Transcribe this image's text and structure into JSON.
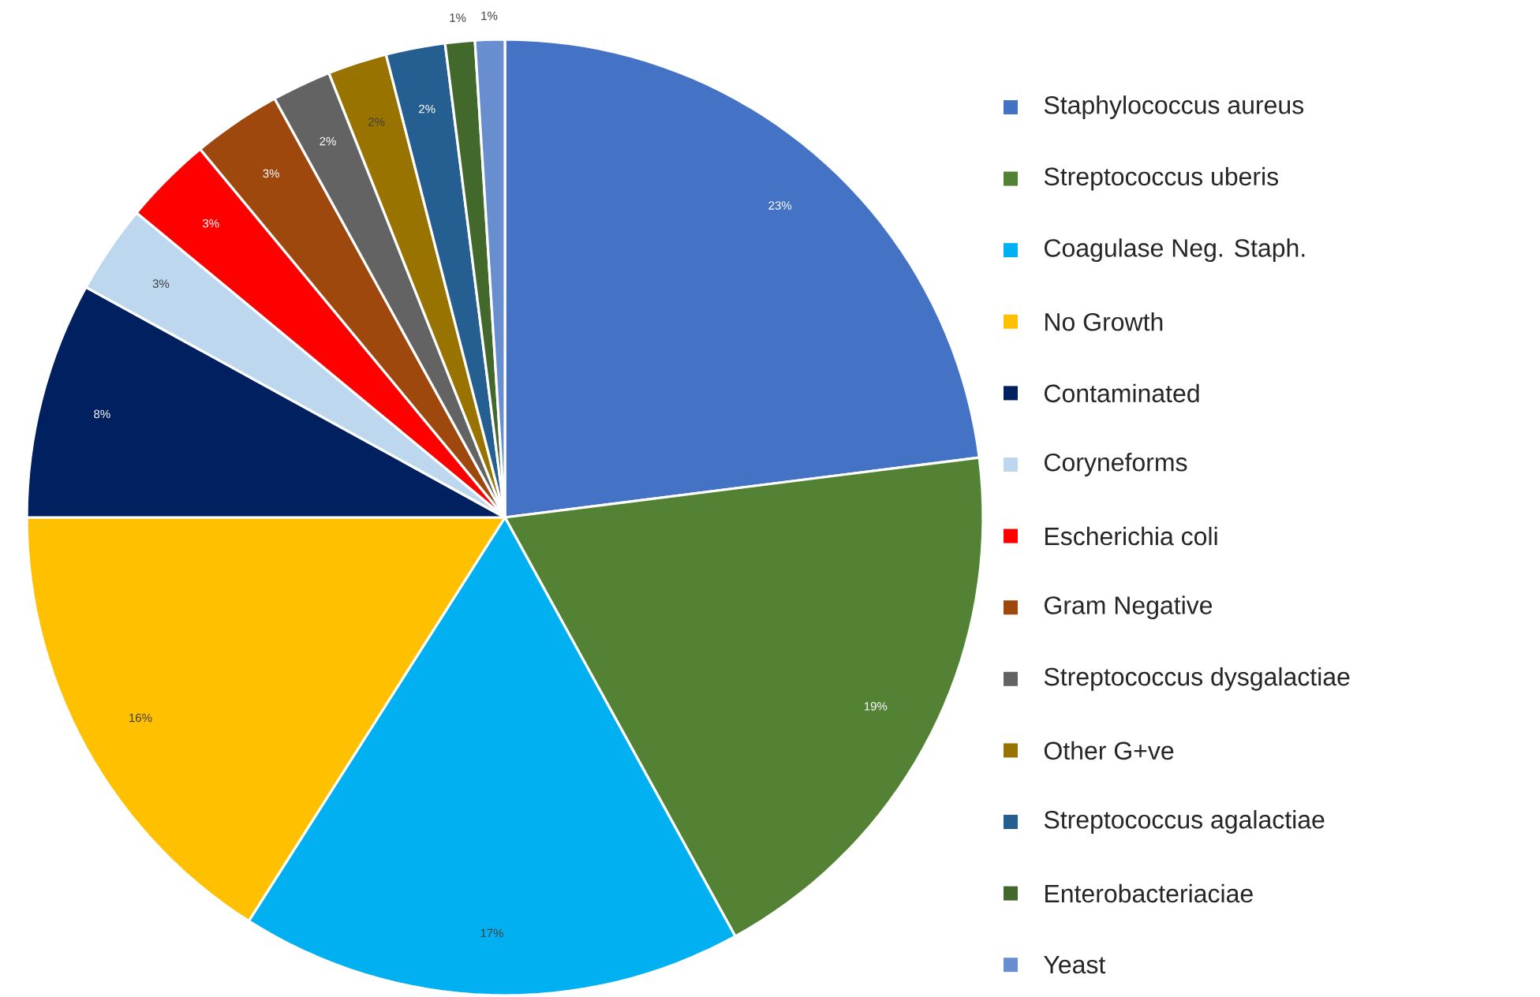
{
  "chart_data": {
    "type": "pie",
    "categories": [
      "Staphylococcus aureus",
      "Streptococcus uberis",
      "Coagulase Neg. Staph.",
      "No Growth",
      "Contaminated",
      "Coryneforms",
      "Escherichia coli",
      "Gram Negative",
      "Streptococcus dysgalactiae",
      "Other G+ve",
      "Streptococcus agalactiae",
      "Enterobacteriaciae",
      "Yeast"
    ],
    "values": [
      23,
      19,
      17,
      16,
      8,
      3,
      3,
      3,
      2,
      2,
      2,
      1,
      1
    ],
    "value_labels": [
      "23%",
      "19%",
      "17%",
      "16%",
      "8%",
      "3%",
      "3%",
      "3%",
      "2%",
      "2%",
      "2%",
      "1%",
      "1%"
    ],
    "colors": [
      "#4472c4",
      "#548235",
      "#00b0f0",
      "#ffc000",
      "#002060",
      "#bdd7ee",
      "#ff0000",
      "#9e480e",
      "#636363",
      "#997300",
      "#255e91",
      "#43682b",
      "#698ed0"
    ],
    "legend": "right"
  }
}
